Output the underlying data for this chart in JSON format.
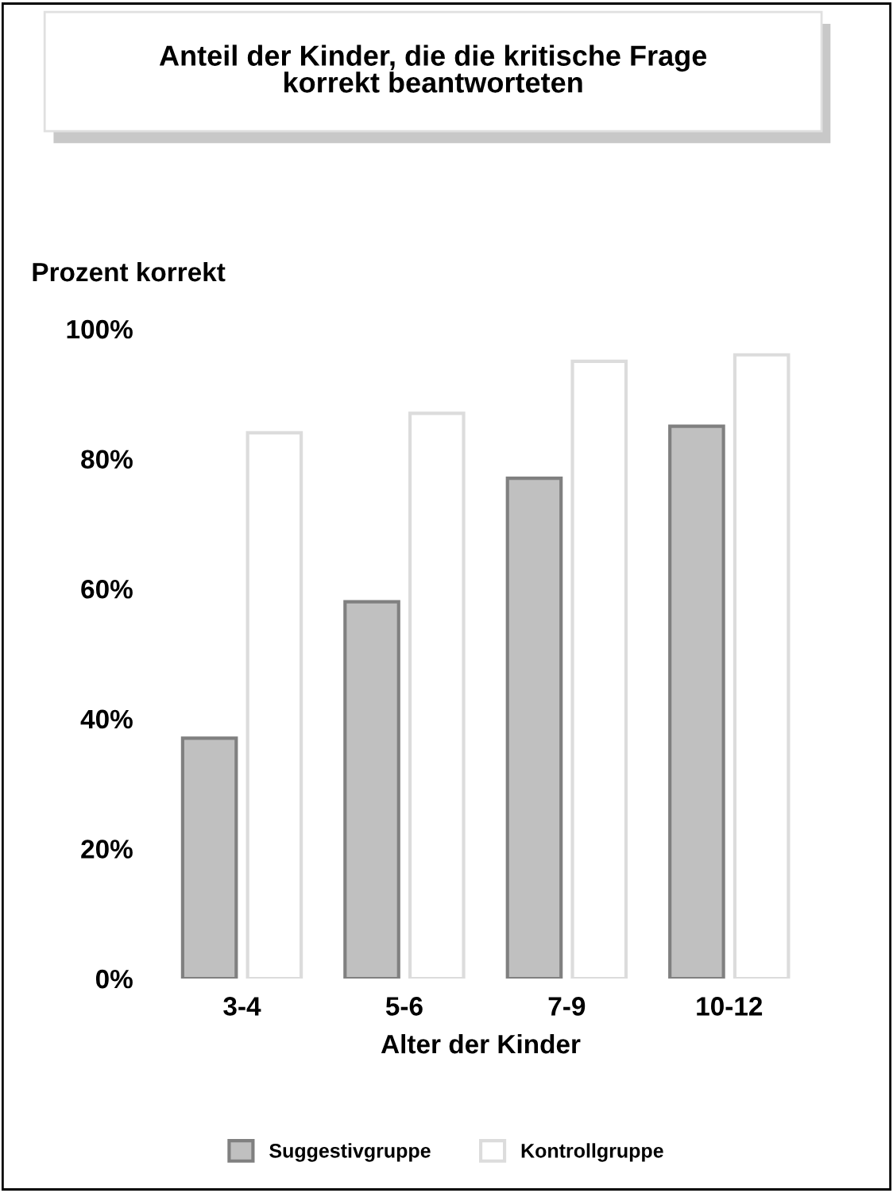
{
  "chart_data": {
    "type": "bar",
    "title": "Anteil der Kinder, die die kritische Frage\nkorrekt beantworteten",
    "xlabel": "Alter der Kinder",
    "ylabel": "Prozent korrekt",
    "categories": [
      "3-4",
      "5-6",
      "7-9",
      "10-12"
    ],
    "series": [
      {
        "name": "Suggestivgruppe",
        "color": "#c0c0c0",
        "values": [
          37,
          58,
          77,
          85
        ]
      },
      {
        "name": "Kontrollgruppe",
        "color": "#ffffff",
        "values": [
          84,
          87,
          95,
          96
        ]
      }
    ],
    "ylim": [
      0,
      100
    ],
    "yticks": [
      {
        "value": 0,
        "label": "0%"
      },
      {
        "value": 20,
        "label": "20%"
      },
      {
        "value": 40,
        "label": "40%"
      },
      {
        "value": 60,
        "label": "60%"
      },
      {
        "value": 80,
        "label": "80%"
      },
      {
        "value": 100,
        "label": "100%"
      }
    ],
    "grid": false,
    "legend": "bottom"
  }
}
